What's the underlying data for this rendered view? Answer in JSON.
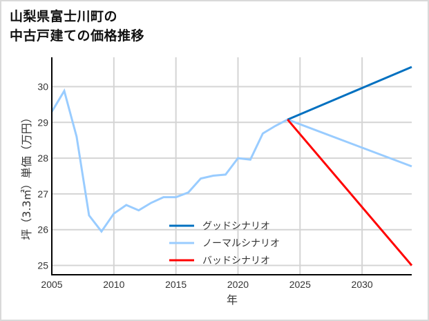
{
  "title_lines": [
    "山梨県富士川町の",
    "中古戸建ての価格推移"
  ],
  "chart_data": {
    "type": "line",
    "title": "山梨県富士川町の中古戸建ての価格推移",
    "xlabel": "年",
    "ylabel": "坪（3.3㎡）単価（万円）",
    "xlim": [
      2005,
      2034
    ],
    "ylim": [
      24.75,
      30.9
    ],
    "xticks": [
      2005,
      2010,
      2015,
      2020,
      2025,
      2030
    ],
    "yticks": [
      25,
      26,
      27,
      28,
      29,
      30
    ],
    "grid": true,
    "legend_position": "lower center",
    "series": [
      {
        "name": "グッドシナリオ",
        "color": "#0070c0",
        "x": [
          2024,
          2034
        ],
        "values": [
          29.08,
          30.55
        ]
      },
      {
        "name": "ノーマルシナリオ",
        "color": "#99ccff",
        "x": [
          2005,
          2006,
          2007,
          2008,
          2009,
          2010,
          2011,
          2012,
          2013,
          2014,
          2015,
          2016,
          2017,
          2018,
          2019,
          2020,
          2021,
          2022,
          2023,
          2024,
          2034
        ],
        "values": [
          29.3,
          29.88,
          28.6,
          26.4,
          25.95,
          26.45,
          26.69,
          26.54,
          26.75,
          26.91,
          26.91,
          27.04,
          27.43,
          27.51,
          27.54,
          28.0,
          27.96,
          28.69,
          28.9,
          29.08,
          27.77
        ]
      },
      {
        "name": "バッドシナリオ",
        "color": "#ff0000",
        "x": [
          2024,
          2034
        ],
        "values": [
          29.08,
          25.0
        ]
      }
    ]
  }
}
